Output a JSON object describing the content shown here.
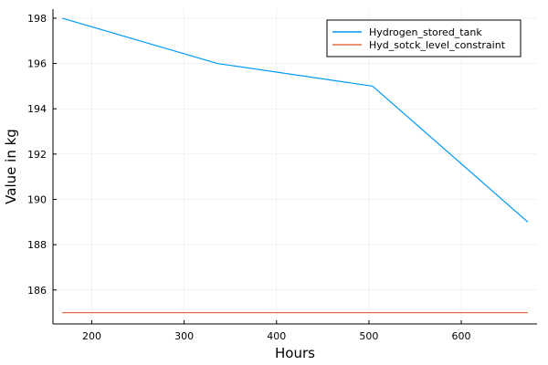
{
  "chart_data": {
    "type": "line",
    "xlabel": "Hours",
    "ylabel": "Value in kg",
    "xlim": [
      158,
      682
    ],
    "ylim": [
      184.5,
      198.4
    ],
    "xticks": [
      200,
      300,
      400,
      500,
      600
    ],
    "yticks": [
      186,
      188,
      190,
      192,
      194,
      196,
      198
    ],
    "grid": true,
    "legend_position": "top-right",
    "series": [
      {
        "name": "Hydrogen_stored_tank",
        "color": "#009AFA",
        "x": [
          168,
          336,
          504,
          672
        ],
        "y": [
          198,
          196,
          195,
          189
        ]
      },
      {
        "name": "Hyd_sotck_level_constraint",
        "color": "#E36F47",
        "x": [
          168,
          336,
          504,
          672
        ],
        "y": [
          185,
          185,
          185,
          185
        ]
      }
    ]
  }
}
